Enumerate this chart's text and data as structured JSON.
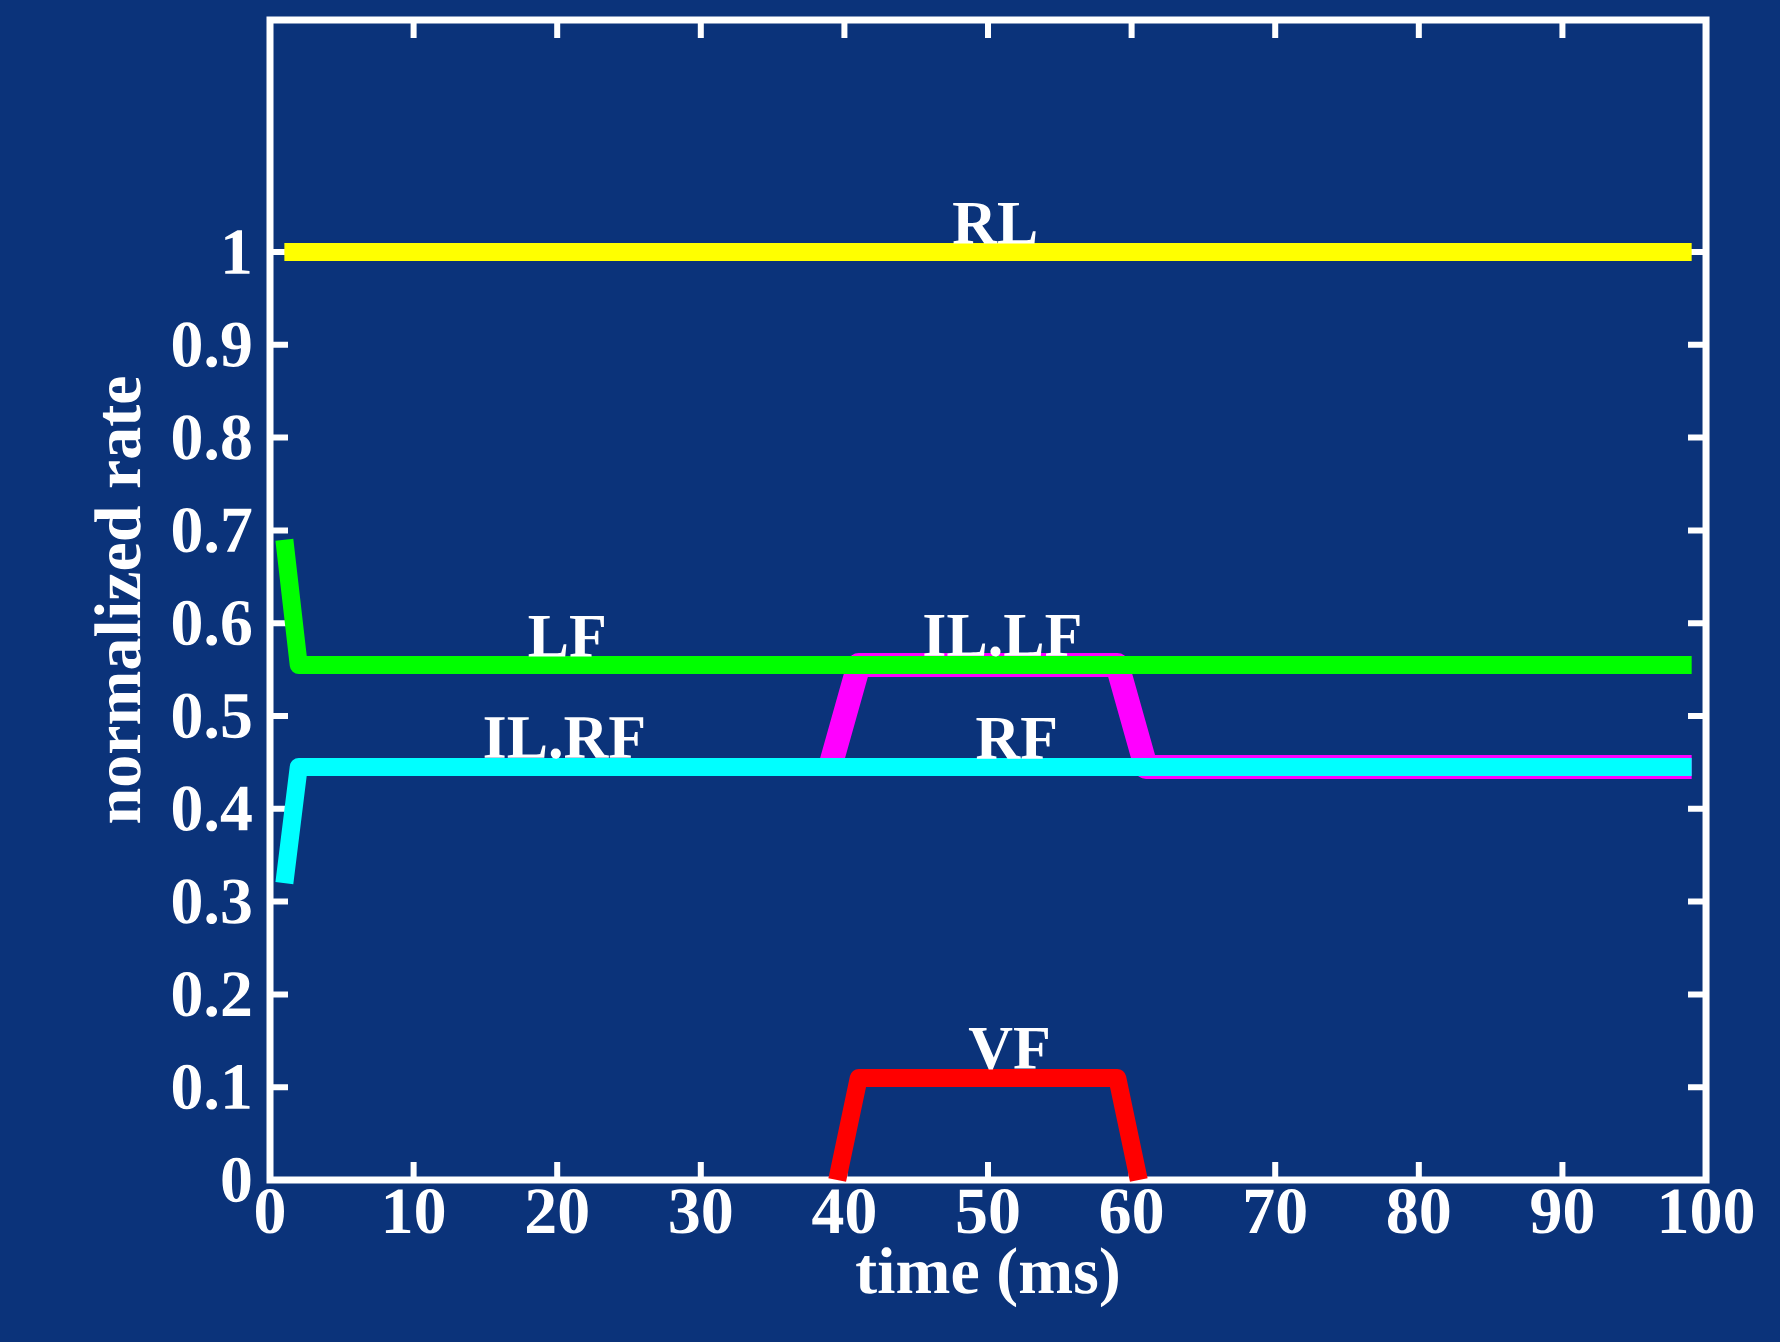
{
  "chart_data": {
    "type": "line",
    "xlabel": "time (ms)",
    "ylabel": "normalized rate",
    "xlim": [
      0,
      100
    ],
    "ylim": [
      0,
      1.25
    ],
    "xticks": [
      0,
      10,
      20,
      30,
      40,
      50,
      60,
      70,
      80,
      90,
      100
    ],
    "yticks": [
      0,
      0.1,
      0.2,
      0.3,
      0.4,
      0.5,
      0.6,
      0.7,
      0.8,
      0.9,
      1
    ],
    "grid": false,
    "marker": "none",
    "line_style": "solid",
    "series": [
      {
        "color": "#ff00ff",
        "x": [
          39,
          41,
          59,
          61,
          99
        ],
        "values": [
          0.445,
          0.555,
          0.555,
          0.445,
          0.445
        ]
      },
      {
        "color": "#ffff00",
        "x": [
          1,
          99
        ],
        "values": [
          1.0,
          1.0
        ]
      },
      {
        "color": "#00ff00",
        "x": [
          1,
          2,
          99
        ],
        "values": [
          0.69,
          0.555,
          0.555
        ]
      },
      {
        "color": "#00ffff",
        "x": [
          1,
          2,
          99
        ],
        "values": [
          0.32,
          0.445,
          0.445
        ]
      },
      {
        "color": "#ff0000",
        "x": [
          39.5,
          41,
          59,
          60.5
        ],
        "values": [
          0,
          0.11,
          0.11,
          0
        ]
      }
    ],
    "annotations": [
      {
        "text": "RL",
        "x": 50.5,
        "y": 1.0
      },
      {
        "text": "LF",
        "x": 20.7,
        "y": 0.555
      },
      {
        "text": "IL.LF",
        "x": 51,
        "y": 0.555
      },
      {
        "text": "IL.RF",
        "x": 20.5,
        "y": 0.445
      },
      {
        "text": "RF",
        "x": 52,
        "y": 0.445
      },
      {
        "text": "VF",
        "x": 51.5,
        "y": 0.11
      }
    ]
  }
}
